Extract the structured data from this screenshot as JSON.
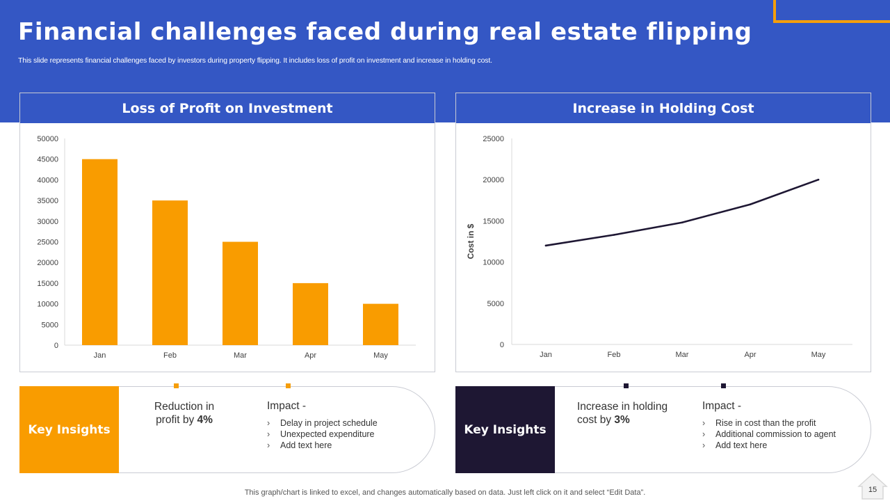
{
  "slide": {
    "title": "Financial challenges faced during real estate flipping",
    "subtitle": "This slide represents financial challenges faced by investors during property flipping. It includes loss of profit on investment and increase in holding cost.",
    "footer_note": "This graph/chart is linked to excel,  and changes automatically based on data. Just left click on it and select “Edit Data”.",
    "page_number": "15"
  },
  "colors": {
    "brand_blue": "#3457c4",
    "accent_orange": "#f99c00",
    "dark_navy": "#1e1733"
  },
  "chart_data": [
    {
      "type": "bar",
      "title": "Loss of Profit on Investment",
      "categories": [
        "Jan",
        "Feb",
        "Mar",
        "Apr",
        "May"
      ],
      "values": [
        45000,
        35000,
        25000,
        15000,
        10000
      ],
      "ylim": [
        0,
        50000
      ],
      "yticks": [
        0,
        5000,
        10000,
        15000,
        20000,
        25000,
        30000,
        35000,
        40000,
        45000,
        50000
      ],
      "xlabel": "",
      "ylabel": "",
      "grid": false,
      "color": "#f99c00"
    },
    {
      "type": "line",
      "title": "Increase in Holding Cost",
      "categories": [
        "Jan",
        "Feb",
        "Mar",
        "Apr",
        "May"
      ],
      "values": [
        12000,
        13300,
        14800,
        17000,
        20000
      ],
      "ylim": [
        0,
        25000
      ],
      "yticks": [
        0,
        5000,
        10000,
        15000,
        20000,
        25000
      ],
      "xlabel": "",
      "ylabel": "Cost in $",
      "grid": false,
      "color": "#1e1733"
    }
  ],
  "insights": [
    {
      "label": "Key Insights",
      "stat_prefix": "Reduction in profit by ",
      "stat_value": "4%",
      "impact_title": "Impact -",
      "bullets": [
        "Delay in project schedule",
        "Unexpected expenditure",
        "Add text here"
      ]
    },
    {
      "label": "Key Insights",
      "stat_prefix": "Increase  in holding cost by ",
      "stat_value": "3%",
      "impact_title": "Impact -",
      "bullets": [
        "Rise in cost than the profit",
        "Additional commission to agent",
        "Add text here"
      ]
    }
  ]
}
